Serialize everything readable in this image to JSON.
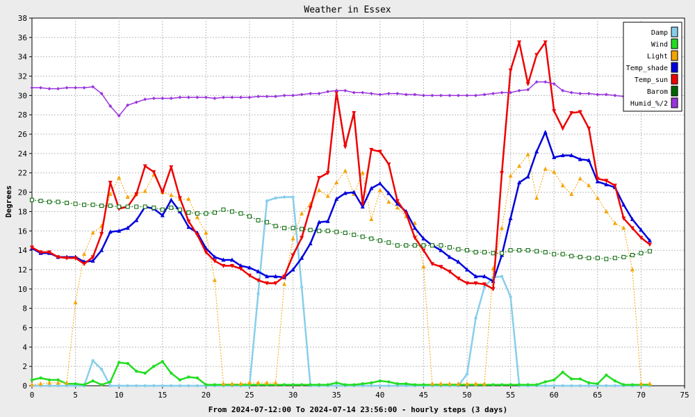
{
  "chart_data": {
    "type": "line",
    "title": "Weather in Essex",
    "xlabel": "From 2024-07-12:00 To 2024-07-14 23:56:00 - hourly steps (3 days)",
    "ylabel": "Degrees",
    "xlim": [
      0,
      75
    ],
    "ylim": [
      0,
      38
    ],
    "x_ticks": [
      0,
      5,
      10,
      15,
      20,
      25,
      30,
      35,
      40,
      45,
      50,
      55,
      60,
      65,
      70,
      75
    ],
    "y_ticks": [
      0,
      2,
      4,
      6,
      8,
      10,
      12,
      14,
      16,
      18,
      20,
      22,
      24,
      26,
      28,
      30,
      32,
      34,
      36,
      38
    ],
    "grid": true,
    "legend_position": "top-right",
    "series": [
      {
        "name": "Damp",
        "color": "#87ceeb",
        "values": [
          0,
          0,
          0,
          0,
          0,
          0,
          0,
          2.6,
          1.7,
          0,
          0,
          0,
          0,
          0,
          0,
          0,
          0,
          0,
          0,
          0,
          0,
          0,
          0,
          0,
          0,
          0,
          9.5,
          19.1,
          19.4,
          19.5,
          19.5,
          10.2,
          0,
          0,
          0,
          0,
          0,
          0,
          0,
          0,
          0,
          0,
          0,
          0,
          0,
          0,
          0,
          0,
          0,
          0,
          1.2,
          7,
          10.2,
          11.2,
          11.3,
          9.2,
          0,
          0,
          0,
          0,
          0,
          0,
          0,
          0,
          0,
          0,
          0,
          0,
          0,
          0,
          0,
          0
        ]
      },
      {
        "name": "Wind",
        "color": "#22dd22",
        "values": [
          0.6,
          0.8,
          0.6,
          0.6,
          0.2,
          0.2,
          0.1,
          0.5,
          0.1,
          0.4,
          2.4,
          2.3,
          1.5,
          1.3,
          2,
          2.5,
          1.3,
          0.6,
          0.9,
          0.8,
          0.1,
          0.1,
          0.1,
          0.1,
          0.1,
          0.1,
          0.1,
          0.1,
          0.1,
          0.1,
          0.1,
          0.1,
          0.1,
          0.1,
          0.1,
          0.3,
          0.1,
          0.1,
          0.2,
          0.3,
          0.5,
          0.4,
          0.2,
          0.2,
          0.1,
          0.1,
          0.1,
          0.1,
          0.1,
          0.1,
          0.1,
          0.1,
          0.1,
          0.1,
          0.1,
          0.1,
          0.1,
          0.1,
          0.1,
          0.4,
          0.6,
          1.4,
          0.7,
          0.7,
          0.3,
          0.2,
          1.1,
          0.5,
          0.1,
          0.1,
          0.1,
          0.1
        ]
      },
      {
        "name": "Light",
        "color": "#f5a400",
        "values": [
          0.1,
          0.2,
          0.3,
          0.3,
          0.3,
          8.6,
          13.6,
          15.8,
          16.5,
          19.8,
          21.5,
          19.5,
          19.8,
          20.1,
          21.8,
          20,
          19.7,
          19.3,
          19.3,
          17.4,
          15.8,
          10.9,
          0.2,
          0.2,
          0.2,
          0.3,
          0.3,
          0.3,
          0.3,
          10.5,
          15.2,
          17.8,
          18.8,
          20.2,
          19.6,
          21.0,
          22.2,
          19.8,
          22.0,
          17.2,
          20.2,
          19.0,
          18.4,
          17.5,
          16.8,
          12.3,
          0.2,
          0.2,
          0.2,
          0.2,
          0.2,
          0.2,
          0.2,
          12.1,
          16.3,
          21.7,
          22.7,
          23.9,
          19.4,
          22.4,
          22.1,
          20.7,
          19.8,
          21.4,
          20.7,
          19.4,
          18.0,
          16.8,
          16.3,
          12.0,
          0.2,
          0.2
        ]
      },
      {
        "name": "Temp_shade",
        "color": "#0000dd",
        "values": [
          14.2,
          13.7,
          13.7,
          13.3,
          13.3,
          13.3,
          12.8,
          12.9,
          14.0,
          15.9,
          16.0,
          16.3,
          17.1,
          18.5,
          18.3,
          17.6,
          19.2,
          18.0,
          16.4,
          15.8,
          14.2,
          13.3,
          13.0,
          13.0,
          12.4,
          12.2,
          11.8,
          11.3,
          11.3,
          11.2,
          12.0,
          13.2,
          14.7,
          16.9,
          17.0,
          19.3,
          19.9,
          20.0,
          18.5,
          20.4,
          20.9,
          19.9,
          18.8,
          18.0,
          16.3,
          15.2,
          14.5,
          14.0,
          13.3,
          12.8,
          12.0,
          11.3,
          11.3,
          10.8,
          13.5,
          17.3,
          21.0,
          21.6,
          24.2,
          26.2,
          23.6,
          23.8,
          23.8,
          23.4,
          23.3,
          21.1,
          20.8,
          20.5,
          18.7,
          17.2,
          16.1,
          15.0
        ]
      },
      {
        "name": "Temp_sun",
        "color": "#ee0000",
        "values": [
          14.3,
          13.8,
          13.8,
          13.3,
          13.2,
          13.2,
          12.6,
          13.3,
          15.7,
          21.0,
          18.3,
          18.5,
          19.8,
          22.7,
          22.1,
          20.0,
          22.6,
          19.4,
          17.0,
          15.6,
          13.8,
          12.9,
          12.4,
          12.4,
          12.1,
          11.4,
          10.9,
          10.6,
          10.6,
          11.3,
          13.5,
          15.3,
          18.4,
          21.5,
          22.0,
          30.3,
          24.7,
          28.2,
          18.8,
          24.4,
          24.2,
          22.9,
          19.1,
          17.8,
          15.3,
          14.0,
          12.6,
          12.3,
          11.8,
          11.1,
          10.6,
          10.6,
          10.5,
          10.0,
          22.0,
          32.6,
          35.5,
          31.2,
          34.2,
          35.5,
          28.4,
          26.6,
          28.2,
          28.3,
          26.6,
          21.4,
          21.2,
          20.7,
          17.3,
          16.3,
          15.3,
          14.6
        ]
      },
      {
        "name": "Barom",
        "color": "#006400",
        "values": [
          19.2,
          19.1,
          19.0,
          19.0,
          18.9,
          18.8,
          18.7,
          18.7,
          18.6,
          18.6,
          18.5,
          18.5,
          18.5,
          18.5,
          18.4,
          18.2,
          18.4,
          18.2,
          17.9,
          17.8,
          17.8,
          17.9,
          18.2,
          18.0,
          17.8,
          17.5,
          17.1,
          16.9,
          16.5,
          16.3,
          16.3,
          16.2,
          16.1,
          16.0,
          16.0,
          15.9,
          15.8,
          15.6,
          15.4,
          15.2,
          15.0,
          14.8,
          14.5,
          14.5,
          14.5,
          14.5,
          14.5,
          14.5,
          14.3,
          14.1,
          14.0,
          13.8,
          13.8,
          13.7,
          13.7,
          14.0,
          14.0,
          14.0,
          13.9,
          13.8,
          13.6,
          13.6,
          13.4,
          13.3,
          13.2,
          13.2,
          13.1,
          13.2,
          13.3,
          13.5,
          13.7,
          13.9
        ]
      },
      {
        "name": "Humid_%/2",
        "color": "#9933dd",
        "values": [
          30.8,
          30.8,
          30.7,
          30.7,
          30.8,
          30.8,
          30.8,
          30.9,
          30.2,
          28.9,
          27.9,
          29.0,
          29.3,
          29.6,
          29.7,
          29.7,
          29.7,
          29.8,
          29.8,
          29.8,
          29.8,
          29.7,
          29.8,
          29.8,
          29.8,
          29.8,
          29.9,
          29.9,
          29.9,
          30.0,
          30.0,
          30.1,
          30.2,
          30.2,
          30.4,
          30.5,
          30.5,
          30.3,
          30.3,
          30.2,
          30.1,
          30.2,
          30.2,
          30.1,
          30.1,
          30.0,
          30.0,
          30.0,
          30.0,
          30.0,
          30.0,
          30.0,
          30.1,
          30.2,
          30.3,
          30.3,
          30.5,
          30.6,
          31.4,
          31.4,
          31.2,
          30.5,
          30.3,
          30.2,
          30.2,
          30.1,
          30.1,
          30.0,
          29.9,
          29.9,
          29.8,
          29.8
        ]
      }
    ]
  }
}
